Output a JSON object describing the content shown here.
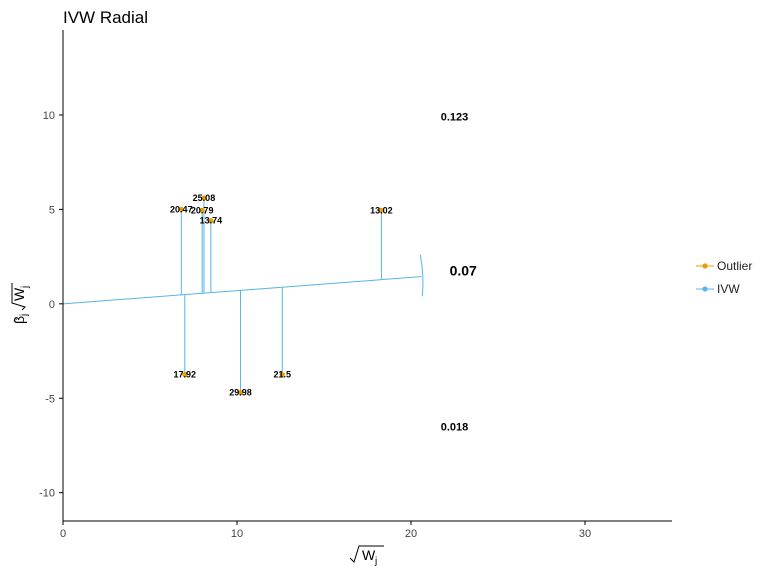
{
  "chart_data": {
    "type": "scatter",
    "title": "IVW Radial",
    "xlim": [
      0,
      35
    ],
    "ylim": [
      -11.5,
      14.5
    ],
    "x_ticks": [
      0,
      10,
      20,
      30
    ],
    "y_ticks": [
      -10,
      -5,
      0,
      5,
      10
    ],
    "x_tick_labels": [
      "0",
      "10",
      "20",
      "30"
    ],
    "y_tick_labels": [
      "-10",
      "-5",
      "0",
      "5",
      "10"
    ],
    "grid": false,
    "legend_position": "right",
    "colors": {
      "outlier": "#E69F00",
      "ivw": "#56B4E9"
    },
    "series": [
      {
        "name": "Outlier",
        "points": [
          {
            "x": 6.8,
            "y": 5.0,
            "label": "20.47"
          },
          {
            "x": 8.1,
            "y": 5.6,
            "label": "25.08"
          },
          {
            "x": 8.0,
            "y": 4.95,
            "label": "20.79"
          },
          {
            "x": 8.5,
            "y": 4.4,
            "label": "13.74"
          },
          {
            "x": 18.3,
            "y": 4.95,
            "label": "13.02"
          },
          {
            "x": 7.0,
            "y": -3.75,
            "label": "17.92"
          },
          {
            "x": 10.2,
            "y": -4.7,
            "label": "29.98"
          },
          {
            "x": 12.6,
            "y": -3.75,
            "label": "21.5"
          }
        ]
      },
      {
        "name": "IVW",
        "slope": 0.07
      }
    ],
    "annotations": [
      {
        "text": "0.123",
        "x": 22.5,
        "y": 9.7
      },
      {
        "text": "0.07",
        "x": 23.0,
        "y": 1.5
      },
      {
        "text": "0.018",
        "x": 22.5,
        "y": -6.7
      }
    ],
    "ivw_line_end_x": 20.6,
    "arc_x": 20.65,
    "arc_y_range": [
      0.4,
      2.6
    ]
  }
}
